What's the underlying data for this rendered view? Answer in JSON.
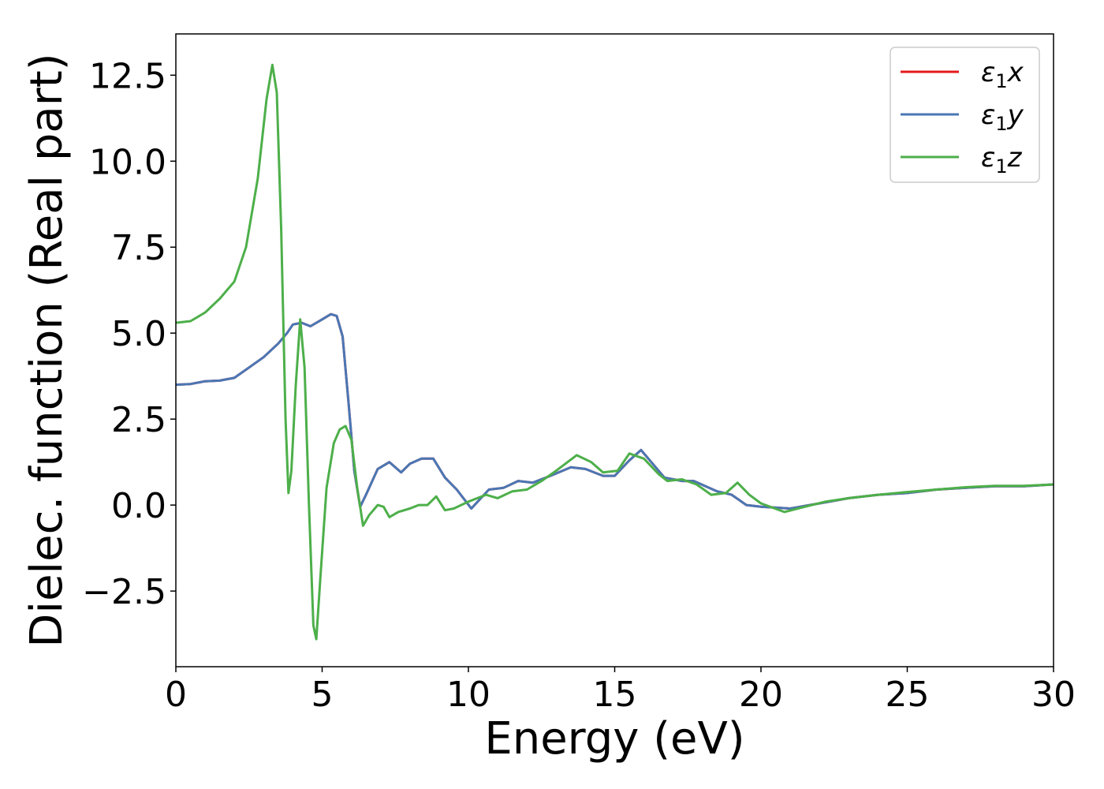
{
  "chart_data": {
    "type": "line",
    "xlabel": "Energy (eV)",
    "ylabel": "Dielec. function (Real part)",
    "xlim": [
      0,
      30
    ],
    "ylim": [
      -4.7,
      13.7
    ],
    "xticks": [
      0,
      5,
      10,
      15,
      20,
      25,
      30
    ],
    "xtick_labels": [
      "0",
      "5",
      "10",
      "15",
      "20",
      "25",
      "30"
    ],
    "yticks": [
      -2.5,
      0.0,
      2.5,
      5.0,
      7.5,
      10.0,
      12.5
    ],
    "ytick_labels": [
      "−2.5",
      "0.0",
      "2.5",
      "5.0",
      "7.5",
      "10.0",
      "12.5"
    ],
    "grid": false,
    "legend_position": "top-right",
    "series": [
      {
        "name": "ε₁x",
        "legend_label": {
          "main": "ε",
          "sub": "1",
          "tail": "x"
        },
        "color": "#e41a1c",
        "points": [
          [
            0,
            3.5
          ],
          [
            0.5,
            3.52
          ],
          [
            1,
            3.6
          ],
          [
            1.5,
            3.62
          ],
          [
            2,
            3.7
          ],
          [
            2.5,
            4.0
          ],
          [
            3,
            4.3
          ],
          [
            3.5,
            4.7
          ],
          [
            3.8,
            5.0
          ],
          [
            4.0,
            5.25
          ],
          [
            4.3,
            5.3
          ],
          [
            4.6,
            5.2
          ],
          [
            5.0,
            5.4
          ],
          [
            5.3,
            5.55
          ],
          [
            5.5,
            5.5
          ],
          [
            5.7,
            4.9
          ],
          [
            5.9,
            3.0
          ],
          [
            6.1,
            1.0
          ],
          [
            6.3,
            -0.05
          ],
          [
            6.5,
            0.3
          ],
          [
            6.9,
            1.05
          ],
          [
            7.3,
            1.25
          ],
          [
            7.7,
            0.95
          ],
          [
            8.0,
            1.2
          ],
          [
            8.4,
            1.35
          ],
          [
            8.8,
            1.35
          ],
          [
            9.2,
            0.8
          ],
          [
            9.6,
            0.45
          ],
          [
            10.1,
            -0.1
          ],
          [
            10.7,
            0.45
          ],
          [
            11.2,
            0.5
          ],
          [
            11.7,
            0.7
          ],
          [
            12.2,
            0.65
          ],
          [
            12.8,
            0.85
          ],
          [
            13.5,
            1.1
          ],
          [
            14.0,
            1.05
          ],
          [
            14.6,
            0.85
          ],
          [
            15.0,
            0.85
          ],
          [
            15.5,
            1.3
          ],
          [
            15.9,
            1.6
          ],
          [
            16.3,
            1.2
          ],
          [
            16.7,
            0.8
          ],
          [
            17.3,
            0.7
          ],
          [
            17.7,
            0.7
          ],
          [
            18.5,
            0.4
          ],
          [
            19.0,
            0.3
          ],
          [
            19.5,
            0.0
          ],
          [
            20.0,
            -0.05
          ],
          [
            21.0,
            -0.1
          ],
          [
            22.0,
            0.05
          ],
          [
            23.0,
            0.2
          ],
          [
            24.0,
            0.3
          ],
          [
            25.0,
            0.35
          ],
          [
            26.0,
            0.45
          ],
          [
            27.0,
            0.5
          ],
          [
            28.0,
            0.55
          ],
          [
            29.0,
            0.55
          ],
          [
            30.0,
            0.6
          ]
        ]
      },
      {
        "name": "ε₁y",
        "legend_label": {
          "main": "ε",
          "sub": "1",
          "tail": "y"
        },
        "color": "#4a77b4",
        "points": [
          [
            0,
            3.5
          ],
          [
            0.5,
            3.52
          ],
          [
            1,
            3.6
          ],
          [
            1.5,
            3.62
          ],
          [
            2,
            3.7
          ],
          [
            2.5,
            4.0
          ],
          [
            3,
            4.3
          ],
          [
            3.5,
            4.7
          ],
          [
            3.8,
            5.0
          ],
          [
            4.0,
            5.25
          ],
          [
            4.3,
            5.3
          ],
          [
            4.6,
            5.2
          ],
          [
            5.0,
            5.4
          ],
          [
            5.3,
            5.55
          ],
          [
            5.5,
            5.5
          ],
          [
            5.7,
            4.9
          ],
          [
            5.9,
            3.0
          ],
          [
            6.1,
            1.0
          ],
          [
            6.3,
            -0.05
          ],
          [
            6.5,
            0.3
          ],
          [
            6.9,
            1.05
          ],
          [
            7.3,
            1.25
          ],
          [
            7.7,
            0.95
          ],
          [
            8.0,
            1.2
          ],
          [
            8.4,
            1.35
          ],
          [
            8.8,
            1.35
          ],
          [
            9.2,
            0.8
          ],
          [
            9.6,
            0.45
          ],
          [
            10.1,
            -0.1
          ],
          [
            10.7,
            0.45
          ],
          [
            11.2,
            0.5
          ],
          [
            11.7,
            0.7
          ],
          [
            12.2,
            0.65
          ],
          [
            12.8,
            0.85
          ],
          [
            13.5,
            1.1
          ],
          [
            14.0,
            1.05
          ],
          [
            14.6,
            0.85
          ],
          [
            15.0,
            0.85
          ],
          [
            15.5,
            1.3
          ],
          [
            15.9,
            1.6
          ],
          [
            16.3,
            1.2
          ],
          [
            16.7,
            0.8
          ],
          [
            17.3,
            0.7
          ],
          [
            17.7,
            0.7
          ],
          [
            18.5,
            0.4
          ],
          [
            19.0,
            0.3
          ],
          [
            19.5,
            0.0
          ],
          [
            20.0,
            -0.05
          ],
          [
            21.0,
            -0.1
          ],
          [
            22.0,
            0.05
          ],
          [
            23.0,
            0.2
          ],
          [
            24.0,
            0.3
          ],
          [
            25.0,
            0.35
          ],
          [
            26.0,
            0.45
          ],
          [
            27.0,
            0.5
          ],
          [
            28.0,
            0.55
          ],
          [
            29.0,
            0.55
          ],
          [
            30.0,
            0.6
          ]
        ]
      },
      {
        "name": "ε₁z",
        "legend_label": {
          "main": "ε",
          "sub": "1",
          "tail": "z"
        },
        "color": "#4daf4a",
        "points": [
          [
            0,
            5.3
          ],
          [
            0.5,
            5.35
          ],
          [
            1,
            5.6
          ],
          [
            1.5,
            6.0
          ],
          [
            2,
            6.5
          ],
          [
            2.4,
            7.5
          ],
          [
            2.8,
            9.5
          ],
          [
            3.1,
            11.8
          ],
          [
            3.3,
            12.8
          ],
          [
            3.45,
            12.0
          ],
          [
            3.6,
            8.0
          ],
          [
            3.75,
            2.5
          ],
          [
            3.85,
            0.35
          ],
          [
            3.95,
            1.0
          ],
          [
            4.1,
            3.5
          ],
          [
            4.25,
            5.4
          ],
          [
            4.4,
            4.0
          ],
          [
            4.55,
            0.0
          ],
          [
            4.7,
            -3.5
          ],
          [
            4.8,
            -3.9
          ],
          [
            4.95,
            -2.0
          ],
          [
            5.15,
            0.5
          ],
          [
            5.4,
            1.8
          ],
          [
            5.6,
            2.2
          ],
          [
            5.8,
            2.3
          ],
          [
            6.0,
            1.9
          ],
          [
            6.2,
            0.5
          ],
          [
            6.4,
            -0.6
          ],
          [
            6.6,
            -0.3
          ],
          [
            6.9,
            0.0
          ],
          [
            7.1,
            -0.05
          ],
          [
            7.3,
            -0.35
          ],
          [
            7.6,
            -0.2
          ],
          [
            8.0,
            -0.1
          ],
          [
            8.3,
            0.0
          ],
          [
            8.6,
            0.0
          ],
          [
            8.9,
            0.25
          ],
          [
            9.2,
            -0.15
          ],
          [
            9.5,
            -0.1
          ],
          [
            10.0,
            0.1
          ],
          [
            10.6,
            0.3
          ],
          [
            11.0,
            0.2
          ],
          [
            11.5,
            0.4
          ],
          [
            12.0,
            0.45
          ],
          [
            12.5,
            0.7
          ],
          [
            13.0,
            1.0
          ],
          [
            13.7,
            1.45
          ],
          [
            14.2,
            1.25
          ],
          [
            14.6,
            0.95
          ],
          [
            15.1,
            1.0
          ],
          [
            15.5,
            1.5
          ],
          [
            16.0,
            1.35
          ],
          [
            16.5,
            0.9
          ],
          [
            16.8,
            0.7
          ],
          [
            17.3,
            0.75
          ],
          [
            17.8,
            0.6
          ],
          [
            18.3,
            0.3
          ],
          [
            18.8,
            0.35
          ],
          [
            19.2,
            0.65
          ],
          [
            19.6,
            0.3
          ],
          [
            20.0,
            0.05
          ],
          [
            20.8,
            -0.2
          ],
          [
            21.5,
            -0.05
          ],
          [
            22.2,
            0.1
          ],
          [
            23.0,
            0.2
          ],
          [
            24.0,
            0.3
          ],
          [
            25.0,
            0.38
          ],
          [
            26.0,
            0.45
          ],
          [
            27.0,
            0.52
          ],
          [
            28.0,
            0.56
          ],
          [
            29.0,
            0.56
          ],
          [
            30.0,
            0.6
          ]
        ]
      }
    ]
  }
}
